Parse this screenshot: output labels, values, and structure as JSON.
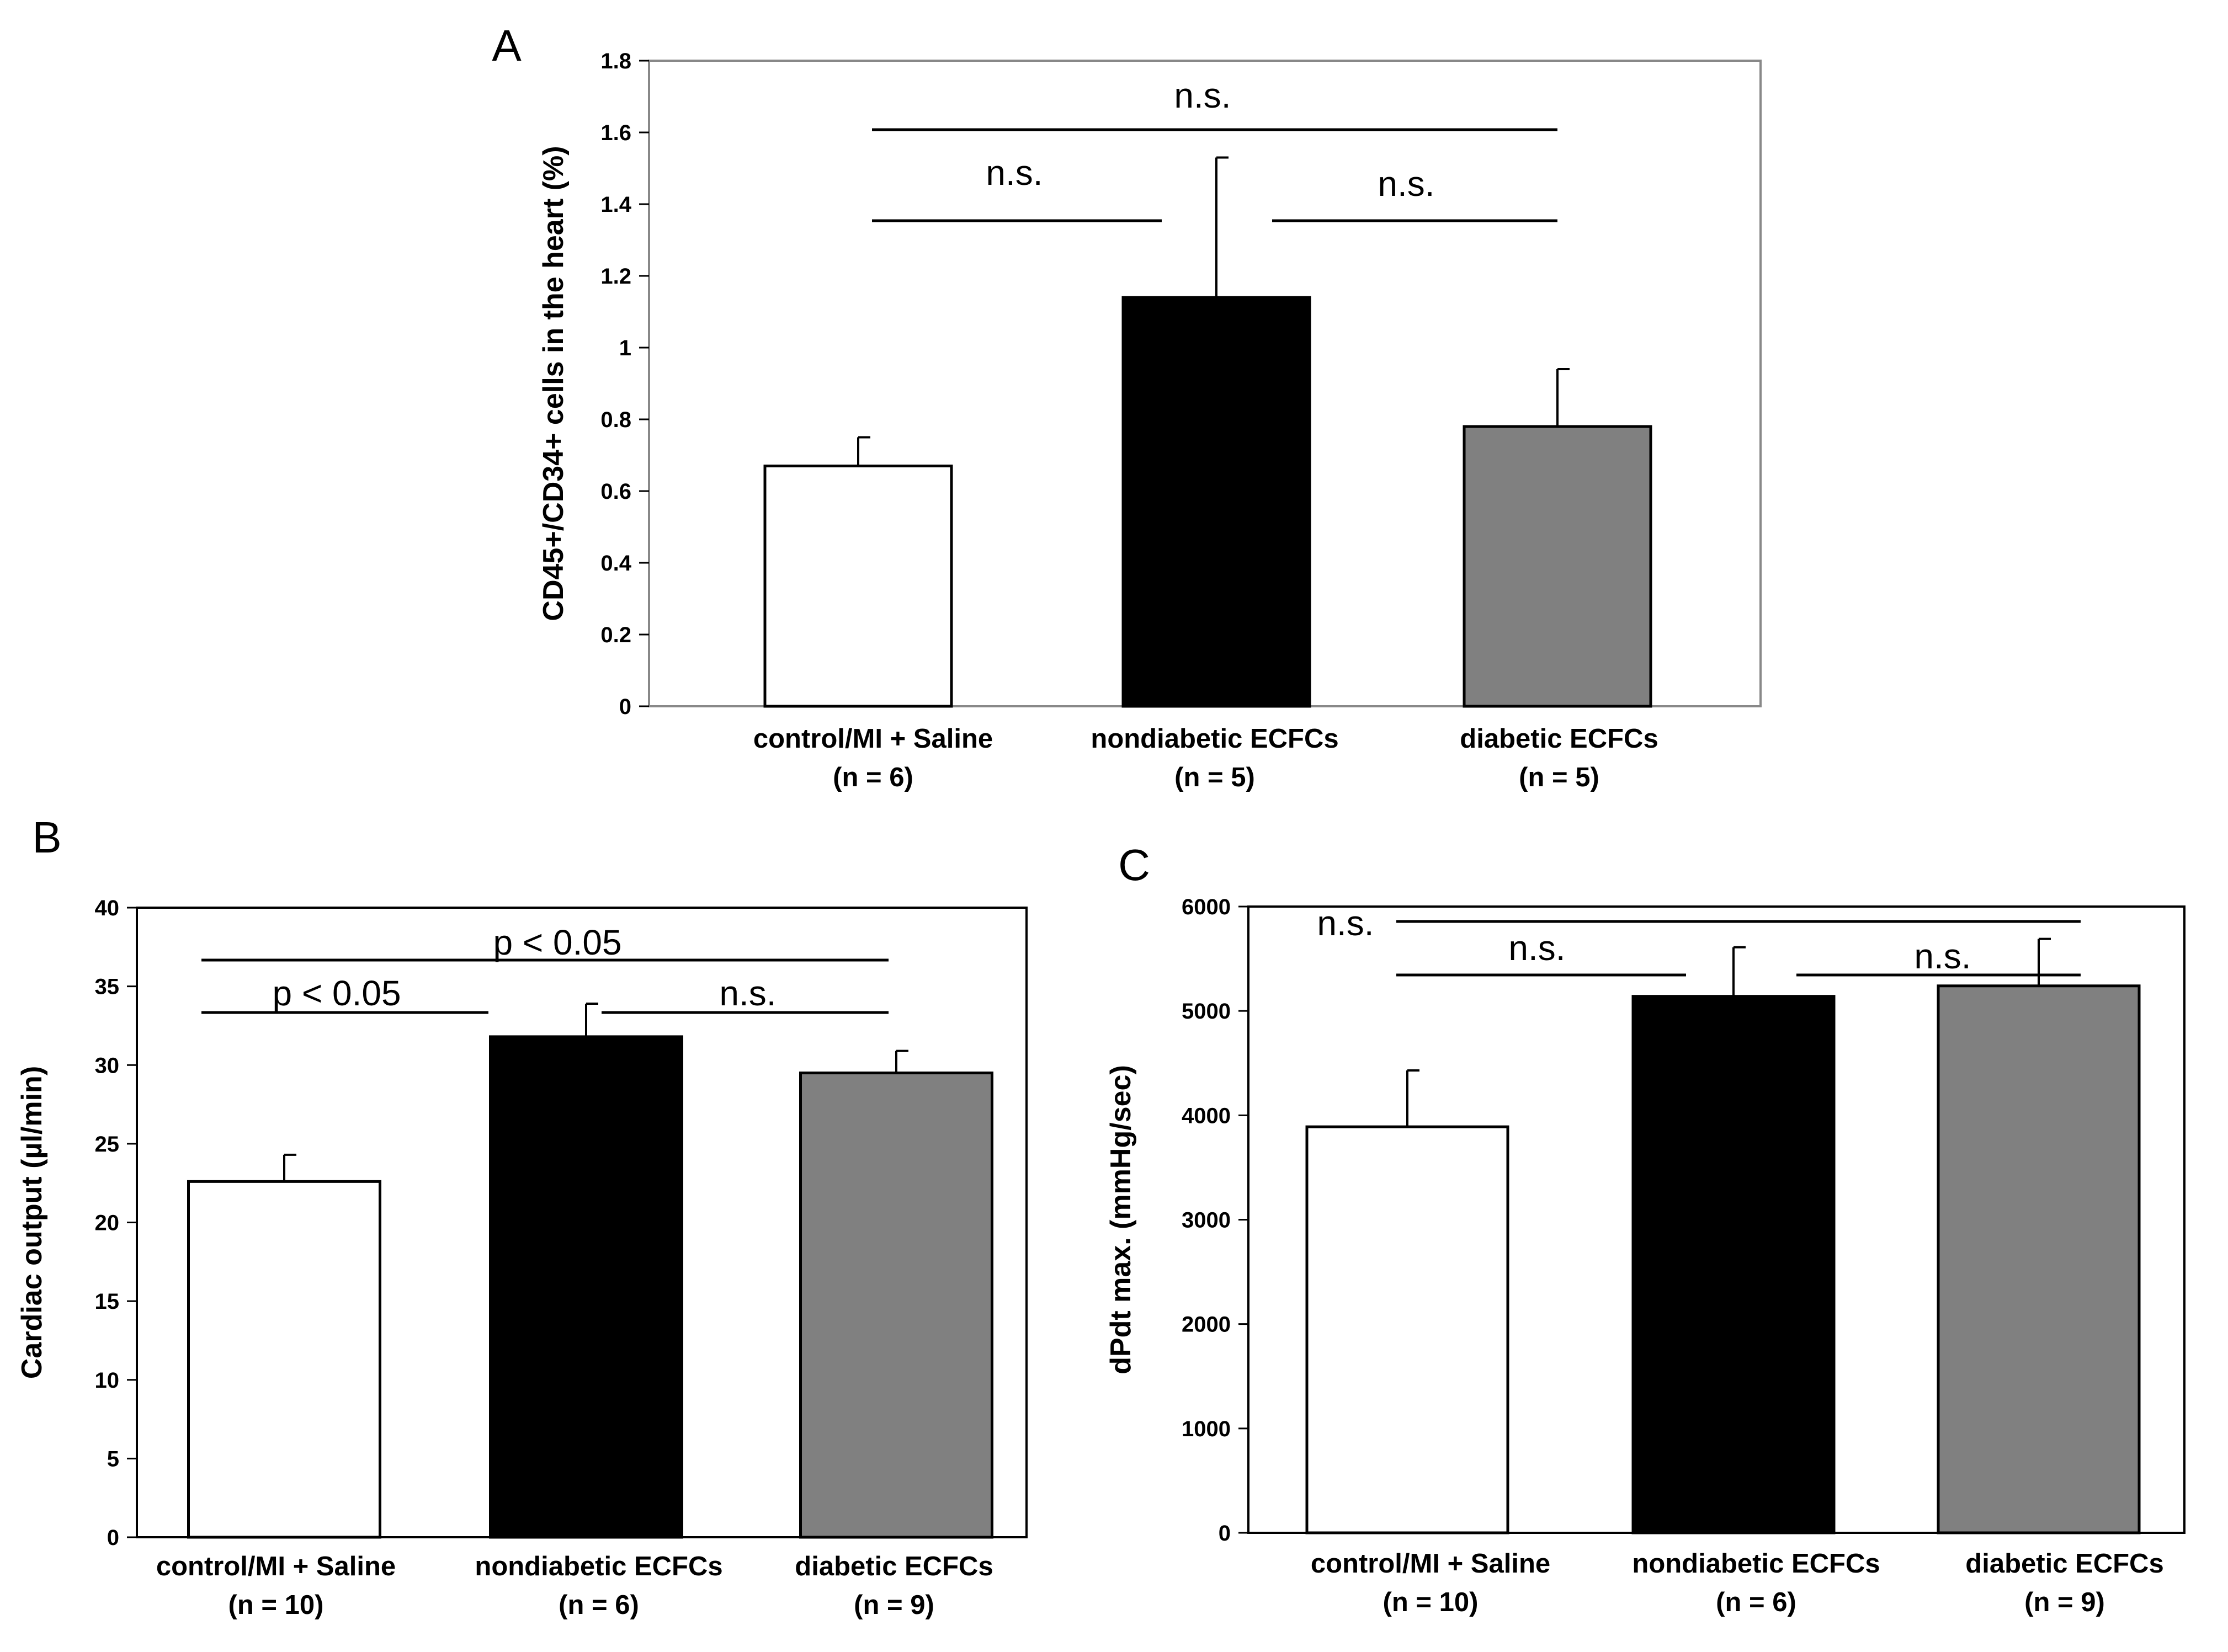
{
  "figure": {
    "panels": [
      "A",
      "B",
      "C"
    ],
    "categories": [
      "control/MI + Saline",
      "nondiabetic ECFCs",
      "diabetic ECFCs"
    ],
    "series_colors": [
      "#ffffff",
      "#000000",
      "#808080"
    ]
  },
  "chart_data": [
    {
      "panel": "A",
      "type": "bar",
      "categories": [
        "control/MI + Saline",
        "nondiabetic ECFCs",
        "diabetic ECFCs"
      ],
      "n_labels": [
        "(n = 6)",
        "(n = 5)",
        "(n = 5)"
      ],
      "values": [
        0.67,
        1.14,
        0.78
      ],
      "errors": [
        0.08,
        0.39,
        0.16
      ],
      "ylabel": "CD45+/CD34+ cells in the heart (%)",
      "ylim": [
        0,
        1.8
      ],
      "yticks": [
        0,
        0.2,
        0.4,
        0.6,
        0.8,
        1,
        1.2,
        1.4,
        1.6,
        1.8
      ],
      "ytick_labels": [
        "0",
        "0.2",
        "0.4",
        "0.6",
        "0.8",
        "1",
        "1.2",
        "1.4",
        "1.6",
        "1.8"
      ],
      "significance": [
        {
          "from": 0,
          "to": 2,
          "label": "n.s."
        },
        {
          "from": 0,
          "to": 1,
          "label": "n.s."
        },
        {
          "from": 1,
          "to": 2,
          "label": "n.s."
        }
      ]
    },
    {
      "panel": "B",
      "type": "bar",
      "categories": [
        "control/MI + Saline",
        "nondiabetic ECFCs",
        "diabetic ECFCs"
      ],
      "n_labels": [
        "(n = 10)",
        "(n = 6)",
        "(n = 9)"
      ],
      "values": [
        22.6,
        31.8,
        29.5
      ],
      "errors": [
        1.7,
        2.1,
        1.4
      ],
      "ylabel": "Cardiac output (µl/min)",
      "ylim": [
        0,
        40
      ],
      "yticks": [
        0,
        5,
        10,
        15,
        20,
        25,
        30,
        35,
        40
      ],
      "ytick_labels": [
        "0",
        "5",
        "10",
        "15",
        "20",
        "25",
        "30",
        "35",
        "40"
      ],
      "significance": [
        {
          "from": 0,
          "to": 2,
          "label": "p < 0.05"
        },
        {
          "from": 0,
          "to": 1,
          "label": "p < 0.05"
        },
        {
          "from": 1,
          "to": 2,
          "label": "n.s."
        }
      ]
    },
    {
      "panel": "C",
      "type": "bar",
      "categories": [
        "control/MI + Saline",
        "nondiabetic ECFCs",
        "diabetic ECFCs"
      ],
      "n_labels": [
        "(n = 10)",
        "(n = 6)",
        "(n = 9)"
      ],
      "values": [
        3890,
        5140,
        5240
      ],
      "errors": [
        540,
        470,
        450
      ],
      "ylabel": "dPdt max. (mmHg/sec)",
      "ylim": [
        0,
        6000
      ],
      "yticks": [
        0,
        1000,
        2000,
        3000,
        4000,
        5000,
        6000
      ],
      "ytick_labels": [
        "0",
        "1000",
        "2000",
        "3000",
        "4000",
        "5000",
        "6000"
      ],
      "significance": [
        {
          "from": 0,
          "to": 2,
          "label": "n.s."
        },
        {
          "from": 0,
          "to": 1,
          "label": "n.s."
        },
        {
          "from": 1,
          "to": 2,
          "label": "n.s."
        }
      ]
    }
  ]
}
